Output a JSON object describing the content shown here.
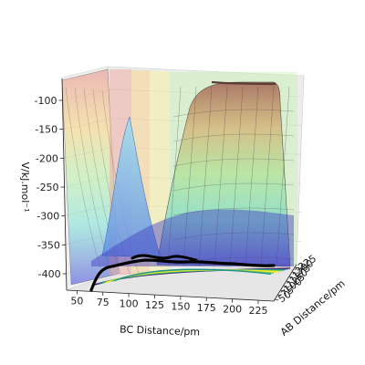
{
  "chart_data": {
    "type": "surface3d",
    "title": "",
    "xlabel": "BC Distance/pm",
    "ylabel": "AB Distance/pm",
    "zlabel": "V/kJ.mol⁻¹",
    "x_ticks": [
      "50",
      "75",
      "100",
      "125",
      "150",
      "175",
      "200",
      "225"
    ],
    "y_ticks": [
      "50",
      "75",
      "100",
      "125",
      "150",
      "175",
      "200",
      "225"
    ],
    "z_ticks": [
      "-100",
      "-150",
      "-200",
      "-250",
      "-300",
      "-350",
      "-400"
    ],
    "xlim": [
      40,
      240
    ],
    "ylim": [
      40,
      240
    ],
    "zlim": [
      -430,
      -80
    ],
    "grid": true,
    "colormap": "viridis",
    "surface_style": "translucent filled contour bands with wireframe",
    "trajectory_color": "#000000",
    "colors": {
      "band_high": "#e8a2a0",
      "band_upper": "#f5d27a",
      "band_mid": "#b9f0a0",
      "band_low": "#7fe0d6",
      "band_well": "#6f6ee0",
      "contour_floor": "#2a1a6a"
    }
  }
}
